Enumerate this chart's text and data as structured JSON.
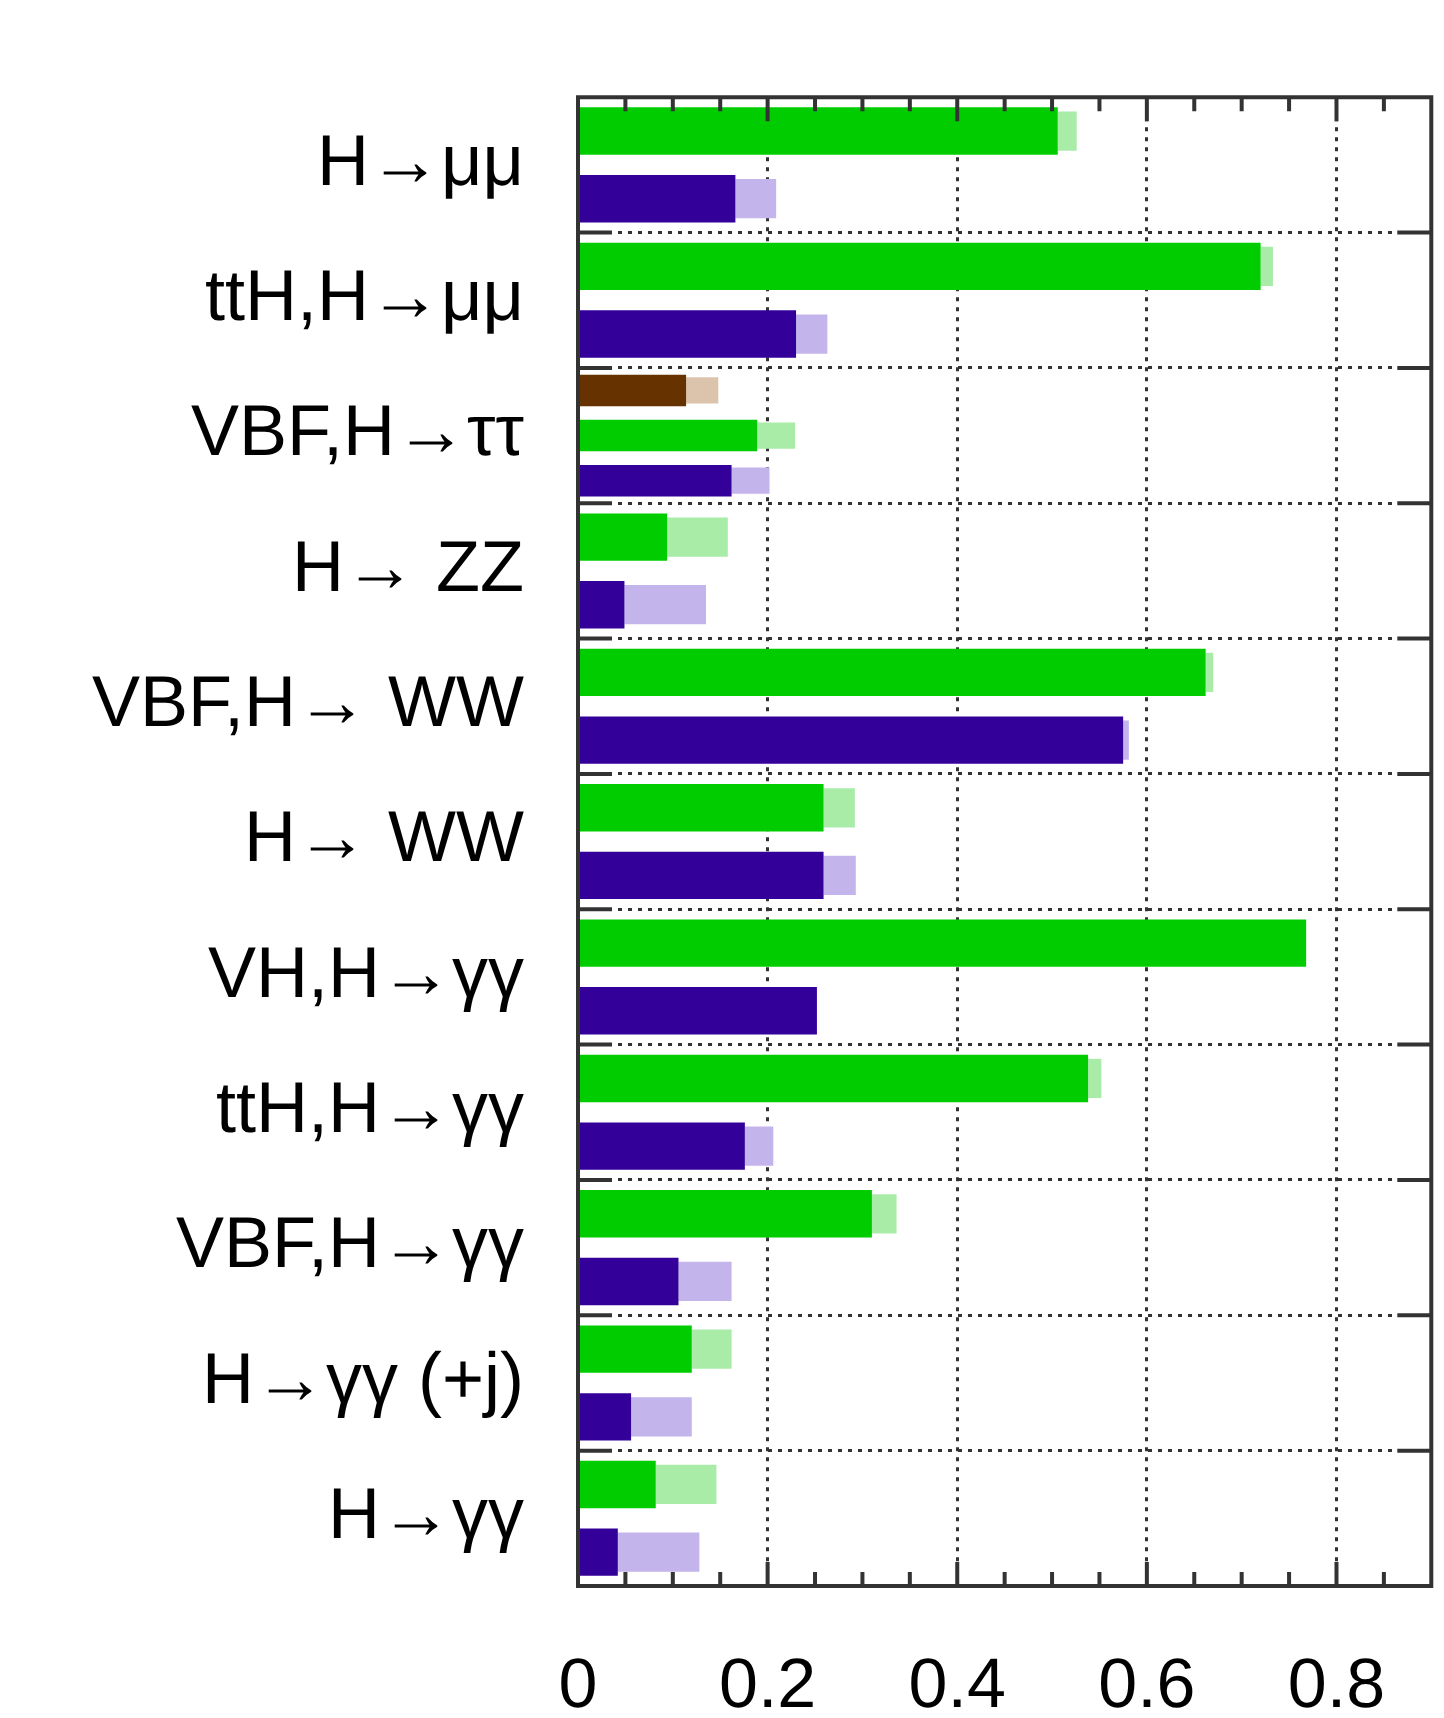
{
  "chart_data": {
    "type": "bar",
    "orientation": "horizontal",
    "categories": [
      "H→μμ",
      "ttH,H→μμ",
      "VBF,H→ττ",
      "H→ ZZ",
      "VBF,H→ WW",
      "H→ WW",
      "VH,H→γγ",
      "ttH,H→γγ",
      "VBF,H→γγ",
      "H→γγ (+j)",
      "H→γγ"
    ],
    "series": [
      {
        "color": "#663300",
        "values": [
          null,
          null,
          0.114,
          null,
          null,
          null,
          null,
          null,
          null,
          null,
          null
        ]
      },
      {
        "color": "#dcc4ac",
        "values": [
          null,
          null,
          0.034,
          null,
          null,
          null,
          null,
          null,
          null,
          null,
          null
        ],
        "base": [
          null,
          null,
          0.114,
          null,
          null,
          null,
          null,
          null,
          null,
          null,
          null
        ]
      },
      {
        "color": "#00cc00",
        "values": [
          0.506,
          0.72,
          0.189,
          0.094,
          0.662,
          0.259,
          0.768,
          0.538,
          0.31,
          0.12,
          0.082
        ]
      },
      {
        "color": "#a8eca8",
        "values": [
          0.02,
          0.013,
          0.04,
          0.064,
          0.008,
          0.033,
          null,
          0.014,
          0.026,
          0.042,
          0.064
        ],
        "base": [
          0.506,
          0.72,
          0.189,
          0.094,
          0.662,
          0.259,
          null,
          0.538,
          0.31,
          0.12,
          0.082
        ]
      },
      {
        "color": "#330099",
        "values": [
          0.166,
          0.23,
          0.162,
          0.049,
          0.575,
          0.259,
          0.252,
          0.176,
          0.106,
          0.056,
          0.042
        ]
      },
      {
        "color": "#c4b4ec",
        "values": [
          0.043,
          0.033,
          0.04,
          0.086,
          0.006,
          0.034,
          null,
          0.03,
          0.056,
          0.064,
          0.086
        ],
        "base": [
          0.166,
          0.23,
          0.162,
          0.049,
          0.575,
          0.259,
          null,
          0.176,
          0.106,
          0.056,
          0.042
        ]
      }
    ],
    "xlim": [
      0,
      0.9
    ],
    "xticks": [
      0,
      {
        "value": 0.05,
        "label": null
      },
      {
        "value": 0.1,
        "label": null
      },
      {
        "value": 0.15,
        "label": null
      },
      0.2,
      {
        "value": 0.25,
        "label": null
      },
      {
        "value": 0.3,
        "label": null
      },
      {
        "value": 0.35,
        "label": null
      },
      0.4,
      {
        "value": 0.45,
        "label": null
      },
      {
        "value": 0.5,
        "label": null
      },
      {
        "value": 0.55,
        "label": null
      },
      0.6,
      {
        "value": 0.65,
        "label": null
      },
      {
        "value": 0.7,
        "label": null
      },
      {
        "value": 0.75,
        "label": null
      },
      0.8,
      {
        "value": 0.85,
        "label": null
      }
    ],
    "grid": true
  }
}
